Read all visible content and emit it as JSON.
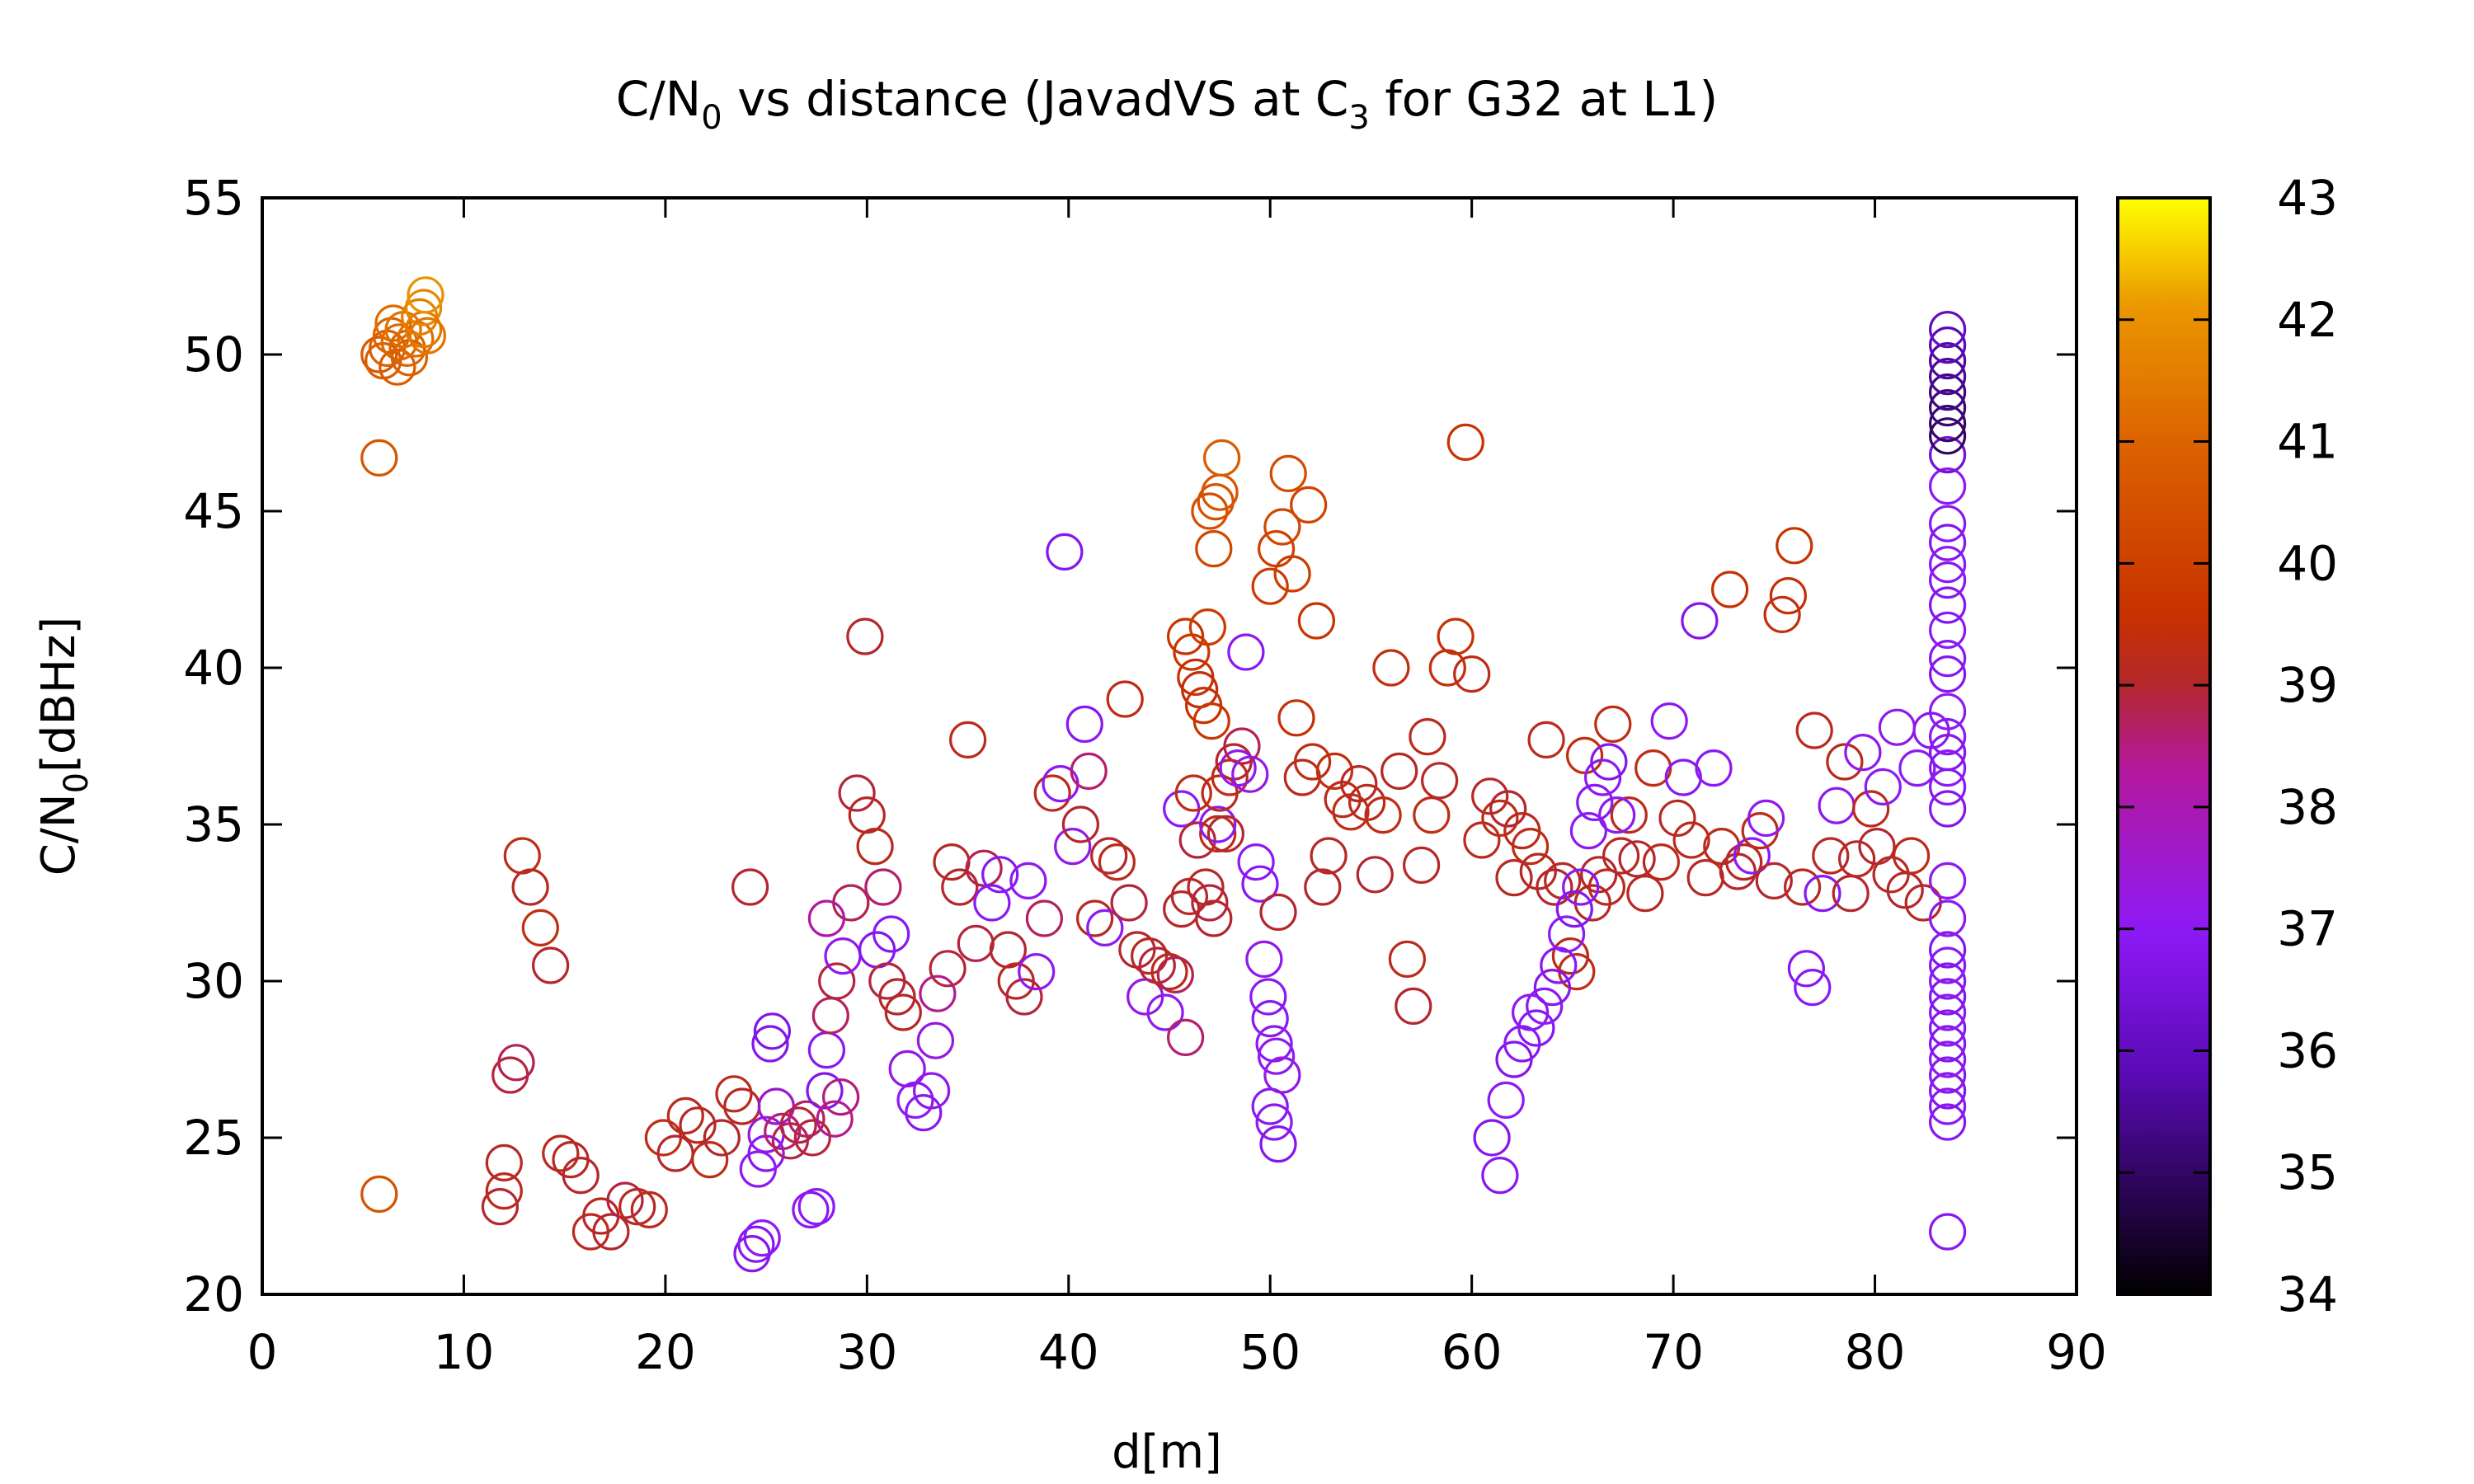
{
  "chart_data": {
    "type": "scatter",
    "title": {
      "main_a": "C/N",
      "sub_a": "0",
      "main_b": " vs distance (JavadVS at C",
      "sub_b": "3",
      "main_c": " for G32 at L1)"
    },
    "xlabel": "d[m]",
    "ylabel": {
      "main": "C/N",
      "sub": "0",
      "rest": "[dBHz]"
    },
    "xlim": [
      0,
      90
    ],
    "ylim": [
      20,
      55
    ],
    "x_ticks": [
      0,
      10,
      20,
      30,
      40,
      50,
      60,
      70,
      80,
      90
    ],
    "y_ticks": [
      20,
      25,
      30,
      35,
      40,
      45,
      50,
      55
    ],
    "colorbar": {
      "min": 34,
      "max": 43,
      "ticks": [
        34,
        35,
        36,
        37,
        38,
        39,
        40,
        41,
        42,
        43
      ]
    },
    "colors": {
      "0": "#000000",
      "0.2": "#5a0ab4",
      "0.33": "#8c19f5",
      "0.48": "#b4199b",
      "0.56": "#b42828",
      "0.62": "#c83200",
      "0.78": "#dc6400",
      "0.9": "#eb9600",
      "1": "#ffff00"
    },
    "point_fields": [
      "d_m",
      "cn0_dBHz",
      "color_value"
    ],
    "points": [
      [
        5.8,
        50.0,
        40.7
      ],
      [
        6.0,
        49.8,
        40.8
      ],
      [
        6.2,
        50.2,
        40.9
      ],
      [
        6.4,
        50.6,
        41.0
      ],
      [
        6.5,
        51.0,
        41.2
      ],
      [
        6.7,
        49.6,
        40.8
      ],
      [
        6.8,
        50.4,
        41.1
      ],
      [
        7.0,
        50.8,
        41.3
      ],
      [
        7.2,
        50.2,
        41.0
      ],
      [
        7.3,
        49.9,
        40.9
      ],
      [
        7.6,
        50.5,
        41.2
      ],
      [
        7.8,
        51.2,
        41.6
      ],
      [
        8.0,
        51.5,
        41.8
      ],
      [
        8.0,
        50.8,
        41.5
      ],
      [
        8.1,
        51.9,
        42.0
      ],
      [
        8.2,
        50.6,
        41.4
      ],
      [
        5.8,
        46.7,
        40.6
      ],
      [
        5.8,
        23.2,
        40.5
      ],
      [
        11.8,
        22.8,
        39.0
      ],
      [
        12.0,
        23.3,
        39.2
      ],
      [
        12.0,
        24.2,
        39.1
      ],
      [
        12.3,
        27.0,
        38.9
      ],
      [
        12.6,
        27.4,
        38.8
      ],
      [
        12.9,
        34.0,
        39.3
      ],
      [
        13.3,
        33.0,
        39.1
      ],
      [
        13.8,
        31.7,
        39.4
      ],
      [
        14.3,
        30.5,
        39.0
      ],
      [
        14.8,
        24.5,
        39.2
      ],
      [
        15.3,
        24.3,
        39.1
      ],
      [
        15.8,
        23.8,
        39.0
      ],
      [
        16.3,
        22.0,
        39.2
      ],
      [
        16.8,
        22.5,
        39.1
      ],
      [
        17.3,
        22.0,
        39.0
      ],
      [
        18.0,
        23.0,
        38.9
      ],
      [
        18.6,
        22.8,
        39.1
      ],
      [
        19.2,
        22.7,
        39.2
      ],
      [
        19.9,
        25.0,
        39.3
      ],
      [
        20.5,
        24.5,
        39.0
      ],
      [
        21.0,
        25.7,
        39.2
      ],
      [
        21.6,
        25.4,
        39.1
      ],
      [
        22.2,
        24.3,
        39.3
      ],
      [
        22.8,
        25.0,
        39.0
      ],
      [
        23.4,
        26.4,
        39.2
      ],
      [
        23.8,
        26.0,
        39.1
      ],
      [
        24.2,
        33.0,
        39.0
      ],
      [
        24.3,
        21.3,
        36.8
      ],
      [
        24.5,
        21.6,
        36.9
      ],
      [
        24.8,
        21.8,
        37.0
      ],
      [
        24.6,
        24.0,
        37.0
      ],
      [
        25.0,
        24.5,
        36.9
      ],
      [
        25.2,
        28.0,
        36.8
      ],
      [
        25.3,
        28.4,
        36.7
      ],
      [
        25.0,
        25.1,
        37.2
      ],
      [
        25.5,
        26.0,
        37.5
      ],
      [
        25.8,
        25.2,
        38.6
      ],
      [
        26.2,
        24.9,
        38.8
      ],
      [
        26.6,
        25.4,
        38.9
      ],
      [
        27.0,
        25.6,
        38.7
      ],
      [
        27.3,
        25.0,
        38.9
      ],
      [
        27.2,
        22.7,
        36.9
      ],
      [
        27.5,
        22.8,
        37.0
      ],
      [
        27.9,
        26.5,
        36.8
      ],
      [
        28.0,
        27.8,
        36.9
      ],
      [
        28.4,
        25.6,
        38.4
      ],
      [
        28.7,
        26.3,
        38.5
      ],
      [
        28.2,
        28.9,
        38.7
      ],
      [
        28.5,
        30.0,
        38.9
      ],
      [
        28.8,
        30.8,
        37.0
      ],
      [
        29.2,
        32.5,
        38.8
      ],
      [
        28.0,
        32.0,
        38.2
      ],
      [
        29.5,
        36.0,
        38.9
      ],
      [
        29.9,
        41.0,
        39.0
      ],
      [
        30.0,
        35.3,
        39.1
      ],
      [
        30.4,
        34.3,
        39.2
      ],
      [
        30.8,
        33.0,
        38.6
      ],
      [
        30.5,
        31.0,
        36.8
      ],
      [
        31.2,
        31.5,
        36.9
      ],
      [
        31.0,
        30.0,
        38.9
      ],
      [
        31.5,
        29.5,
        39.0
      ],
      [
        31.8,
        29.0,
        39.1
      ],
      [
        32.0,
        27.2,
        37.2
      ],
      [
        32.4,
        26.2,
        37.0
      ],
      [
        32.8,
        25.8,
        36.9
      ],
      [
        33.2,
        26.5,
        37.1
      ],
      [
        33.4,
        28.1,
        37.3
      ],
      [
        33.5,
        29.6,
        38.4
      ],
      [
        34.0,
        30.4,
        38.9
      ],
      [
        34.2,
        33.8,
        39.1
      ],
      [
        34.6,
        33.0,
        39.0
      ],
      [
        35.0,
        37.7,
        39.2
      ],
      [
        35.4,
        31.2,
        38.9
      ],
      [
        35.8,
        33.6,
        38.8
      ],
      [
        36.2,
        32.5,
        37.0
      ],
      [
        36.6,
        33.4,
        36.9
      ],
      [
        37.0,
        31.0,
        39.0
      ],
      [
        37.4,
        30.0,
        39.1
      ],
      [
        37.8,
        29.5,
        38.9
      ],
      [
        38.0,
        33.2,
        37.0
      ],
      [
        38.4,
        30.3,
        37.1
      ],
      [
        38.8,
        32.0,
        38.7
      ],
      [
        39.2,
        36.0,
        39.2
      ],
      [
        39.6,
        36.3,
        37.0
      ],
      [
        39.8,
        43.7,
        36.8
      ],
      [
        40.2,
        34.3,
        37.1
      ],
      [
        40.6,
        35.0,
        39.0
      ],
      [
        40.8,
        38.2,
        36.9
      ],
      [
        41.0,
        36.7,
        38.6
      ],
      [
        41.3,
        32.0,
        39.1
      ],
      [
        41.8,
        31.7,
        37.0
      ],
      [
        42.0,
        34.0,
        39.0
      ],
      [
        42.4,
        33.8,
        39.2
      ],
      [
        42.8,
        39.0,
        39.3
      ],
      [
        43.0,
        32.5,
        38.9
      ],
      [
        43.4,
        31.0,
        39.0
      ],
      [
        43.8,
        29.5,
        37.2
      ],
      [
        44.0,
        30.8,
        39.1
      ],
      [
        44.4,
        30.5,
        38.9
      ],
      [
        44.8,
        29.0,
        37.0
      ],
      [
        45.0,
        30.3,
        39.2
      ],
      [
        45.3,
        30.2,
        38.8
      ],
      [
        45.6,
        32.3,
        39.0
      ],
      [
        45.6,
        35.5,
        37.0
      ],
      [
        45.8,
        28.2,
        38.6
      ],
      [
        46.0,
        32.7,
        39.1
      ],
      [
        46.2,
        36.0,
        39.3
      ],
      [
        46.4,
        34.5,
        38.9
      ],
      [
        45.8,
        41.0,
        39.6
      ],
      [
        46.1,
        40.5,
        39.7
      ],
      [
        46.3,
        39.7,
        39.5
      ],
      [
        46.5,
        39.3,
        39.4
      ],
      [
        46.7,
        38.8,
        39.6
      ],
      [
        46.9,
        41.3,
        39.8
      ],
      [
        47.1,
        38.3,
        39.7
      ],
      [
        46.8,
        33.0,
        39.1
      ],
      [
        47.0,
        32.5,
        38.9
      ],
      [
        47.2,
        32.0,
        39.0
      ],
      [
        47.4,
        34.7,
        39.3
      ],
      [
        47.4,
        35.0,
        37.0
      ],
      [
        47.5,
        36.0,
        39.2
      ],
      [
        47.2,
        43.8,
        40.2
      ],
      [
        47.0,
        45.0,
        40.4
      ],
      [
        47.3,
        45.3,
        40.5
      ],
      [
        47.5,
        45.6,
        40.6
      ],
      [
        47.6,
        46.7,
        40.8
      ],
      [
        47.8,
        34.7,
        39.0
      ],
      [
        48.0,
        36.5,
        39.3
      ],
      [
        48.2,
        37.0,
        39.0
      ],
      [
        48.4,
        36.8,
        37.1
      ],
      [
        48.6,
        37.5,
        38.8
      ],
      [
        48.8,
        40.5,
        37.0
      ],
      [
        49.0,
        36.6,
        37.2
      ],
      [
        49.3,
        33.8,
        37.0
      ],
      [
        49.5,
        33.1,
        36.9
      ],
      [
        49.7,
        30.7,
        37.1
      ],
      [
        49.9,
        29.5,
        37.0
      ],
      [
        50.0,
        28.8,
        36.9
      ],
      [
        50.2,
        28.0,
        37.0
      ],
      [
        50.3,
        27.6,
        37.1
      ],
      [
        50.0,
        26.0,
        36.9
      ],
      [
        50.2,
        25.5,
        37.0
      ],
      [
        50.4,
        24.8,
        36.8
      ],
      [
        50.6,
        27.0,
        37.2
      ],
      [
        50.4,
        32.2,
        39.0
      ],
      [
        50.0,
        42.6,
        39.8
      ],
      [
        50.3,
        43.8,
        40.0
      ],
      [
        50.6,
        44.5,
        40.2
      ],
      [
        50.9,
        46.2,
        40.3
      ],
      [
        51.1,
        43.0,
        39.9
      ],
      [
        51.3,
        38.4,
        39.5
      ],
      [
        51.6,
        36.5,
        39.2
      ],
      [
        51.9,
        45.2,
        40.1
      ],
      [
        52.1,
        37.0,
        39.3
      ],
      [
        52.3,
        41.5,
        39.6
      ],
      [
        52.6,
        33.0,
        39.0
      ],
      [
        52.9,
        34.0,
        39.1
      ],
      [
        53.2,
        36.7,
        39.4
      ],
      [
        53.6,
        35.8,
        39.2
      ],
      [
        54.0,
        35.4,
        39.3
      ],
      [
        54.4,
        36.3,
        39.1
      ],
      [
        54.8,
        35.7,
        39.2
      ],
      [
        55.2,
        33.4,
        39.0
      ],
      [
        55.6,
        35.3,
        39.3
      ],
      [
        56.0,
        40.0,
        39.4
      ],
      [
        56.4,
        36.7,
        39.1
      ],
      [
        56.8,
        30.7,
        39.2
      ],
      [
        57.1,
        29.2,
        39.0
      ],
      [
        57.5,
        33.7,
        39.1
      ],
      [
        57.8,
        37.8,
        39.2
      ],
      [
        58.0,
        35.3,
        39.3
      ],
      [
        58.4,
        36.4,
        39.1
      ],
      [
        58.8,
        40.0,
        39.4
      ],
      [
        59.2,
        41.0,
        39.5
      ],
      [
        59.7,
        47.2,
        39.6
      ],
      [
        60.0,
        39.8,
        39.3
      ],
      [
        60.5,
        34.5,
        39.2
      ],
      [
        60.9,
        35.9,
        39.1
      ],
      [
        61.4,
        35.2,
        39.3
      ],
      [
        61.8,
        35.5,
        39.0
      ],
      [
        62.1,
        33.3,
        39.1
      ],
      [
        62.5,
        34.8,
        39.2
      ],
      [
        62.9,
        34.3,
        39.3
      ],
      [
        63.3,
        33.5,
        39.1
      ],
      [
        63.7,
        37.7,
        39.2
      ],
      [
        64.1,
        33.0,
        39.0
      ],
      [
        64.5,
        33.2,
        39.1
      ],
      [
        64.9,
        30.8,
        39.2
      ],
      [
        65.2,
        30.3,
        39.3
      ],
      [
        65.6,
        37.2,
        39.4
      ],
      [
        66.0,
        32.5,
        39.1
      ],
      [
        66.3,
        33.4,
        39.0
      ],
      [
        66.7,
        33.0,
        39.2
      ],
      [
        67.0,
        38.2,
        39.3
      ],
      [
        67.4,
        34.0,
        39.1
      ],
      [
        67.8,
        35.3,
        39.2
      ],
      [
        68.2,
        33.9,
        39.0
      ],
      [
        68.6,
        32.8,
        39.1
      ],
      [
        69.0,
        36.8,
        39.3
      ],
      [
        69.4,
        33.8,
        39.2
      ],
      [
        69.8,
        38.3,
        37.0
      ],
      [
        70.2,
        35.2,
        39.1
      ],
      [
        70.5,
        36.5,
        36.9
      ],
      [
        70.9,
        34.5,
        39.2
      ],
      [
        71.3,
        41.5,
        36.8
      ],
      [
        71.6,
        33.3,
        39.1
      ],
      [
        72.0,
        36.8,
        37.0
      ],
      [
        72.4,
        34.3,
        39.2
      ],
      [
        72.8,
        42.5,
        39.5
      ],
      [
        73.2,
        33.5,
        39.0
      ],
      [
        73.5,
        33.8,
        39.1
      ],
      [
        73.9,
        34.0,
        37.0
      ],
      [
        74.3,
        34.8,
        39.2
      ],
      [
        74.6,
        35.2,
        37.1
      ],
      [
        75.0,
        33.2,
        39.0
      ],
      [
        75.4,
        41.7,
        39.4
      ],
      [
        75.7,
        42.3,
        39.5
      ],
      [
        76.0,
        43.9,
        39.6
      ],
      [
        76.4,
        33.0,
        39.1
      ],
      [
        76.6,
        30.4,
        36.9
      ],
      [
        76.9,
        29.8,
        37.0
      ],
      [
        77.0,
        38.0,
        39.2
      ],
      [
        77.4,
        32.8,
        36.9
      ],
      [
        77.8,
        34.0,
        39.1
      ],
      [
        78.1,
        35.6,
        37.0
      ],
      [
        78.5,
        37.0,
        39.2
      ],
      [
        78.8,
        32.8,
        39.0
      ],
      [
        79.1,
        33.9,
        39.1
      ],
      [
        79.4,
        37.3,
        37.1
      ],
      [
        79.8,
        35.5,
        39.2
      ],
      [
        80.1,
        34.3,
        39.0
      ],
      [
        80.4,
        36.2,
        37.0
      ],
      [
        80.8,
        33.4,
        39.1
      ],
      [
        81.1,
        38.1,
        37.1
      ],
      [
        81.5,
        32.9,
        39.0
      ],
      [
        81.8,
        34.0,
        39.2
      ],
      [
        82.1,
        36.8,
        37.0
      ],
      [
        82.4,
        32.5,
        39.1
      ],
      [
        82.8,
        38.0,
        36.9
      ],
      [
        61.0,
        25.0,
        36.8
      ],
      [
        61.4,
        23.8,
        36.9
      ],
      [
        61.7,
        26.2,
        37.0
      ],
      [
        62.1,
        27.5,
        36.8
      ],
      [
        62.5,
        28.0,
        36.9
      ],
      [
        62.9,
        29.0,
        37.0
      ],
      [
        63.2,
        28.5,
        36.9
      ],
      [
        63.6,
        29.2,
        37.0
      ],
      [
        64.0,
        29.8,
        36.8
      ],
      [
        64.3,
        30.5,
        36.9
      ],
      [
        64.7,
        31.5,
        37.0
      ],
      [
        65.1,
        32.3,
        36.8
      ],
      [
        65.4,
        33.0,
        36.9
      ],
      [
        65.8,
        34.8,
        37.0
      ],
      [
        66.1,
        35.7,
        36.9
      ],
      [
        66.5,
        36.5,
        37.0
      ],
      [
        66.8,
        37.0,
        36.8
      ],
      [
        67.2,
        35.3,
        37.0
      ],
      [
        83.6,
        22.0,
        36.9
      ],
      [
        83.6,
        25.5,
        36.9
      ],
      [
        83.6,
        26.0,
        37.0
      ],
      [
        83.6,
        26.5,
        36.8
      ],
      [
        83.6,
        27.0,
        36.9
      ],
      [
        83.6,
        27.5,
        37.0
      ],
      [
        83.6,
        28.0,
        36.8
      ],
      [
        83.6,
        28.5,
        36.9
      ],
      [
        83.6,
        29.0,
        37.0
      ],
      [
        83.6,
        29.5,
        36.8
      ],
      [
        83.6,
        30.0,
        36.9
      ],
      [
        83.6,
        30.5,
        37.0
      ],
      [
        83.6,
        31.0,
        36.8
      ],
      [
        83.6,
        32.0,
        36.9
      ],
      [
        83.6,
        33.2,
        37.0
      ],
      [
        83.6,
        35.5,
        36.8
      ],
      [
        83.6,
        36.2,
        36.9
      ],
      [
        83.6,
        36.8,
        37.0
      ],
      [
        83.6,
        37.3,
        36.8
      ],
      [
        83.6,
        37.8,
        36.9
      ],
      [
        83.6,
        38.6,
        37.0
      ],
      [
        83.6,
        39.8,
        36.8
      ],
      [
        83.6,
        40.3,
        36.9
      ],
      [
        83.6,
        41.2,
        37.0
      ],
      [
        83.6,
        42.0,
        36.8
      ],
      [
        83.6,
        42.8,
        36.9
      ],
      [
        83.6,
        43.3,
        37.0
      ],
      [
        83.6,
        44.0,
        36.8
      ],
      [
        83.6,
        44.6,
        36.9
      ],
      [
        83.6,
        45.8,
        37.0
      ],
      [
        83.6,
        46.8,
        36.4
      ],
      [
        83.6,
        47.4,
        35.0
      ],
      [
        83.6,
        47.8,
        35.1
      ],
      [
        83.6,
        48.3,
        35.2
      ],
      [
        83.6,
        48.8,
        35.3
      ],
      [
        83.6,
        49.3,
        35.5
      ],
      [
        83.6,
        49.8,
        35.6
      ],
      [
        83.6,
        50.3,
        35.8
      ],
      [
        83.6,
        50.8,
        36.0
      ]
    ]
  }
}
